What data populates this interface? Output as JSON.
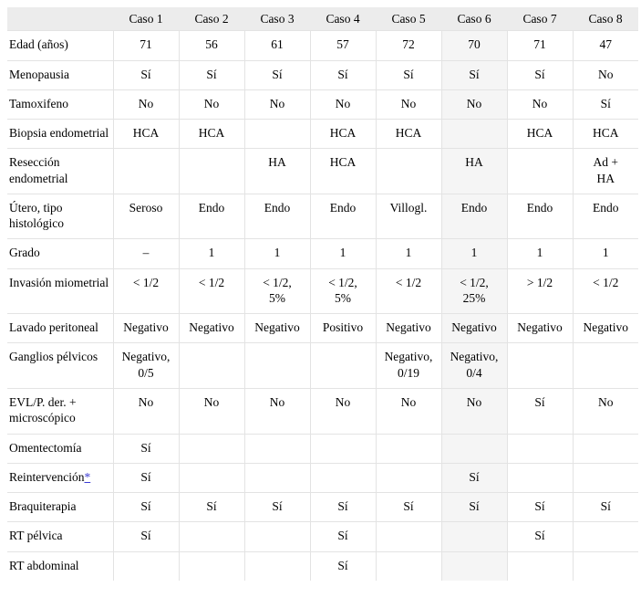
{
  "table": {
    "columns": [
      "",
      "Caso 1",
      "Caso 2",
      "Caso 3",
      "Caso 4",
      "Caso 5",
      "Caso 6",
      "Caso 7",
      "Caso 8"
    ],
    "highlight_column": "Caso 6",
    "header_bg": "#ececec",
    "highlight_col_bg": "#f5f5f5",
    "border_color": "#e3e3e3",
    "footnote_link_color": "#3b3bd4",
    "rows": [
      {
        "label": "Edad (años)",
        "values": [
          "71",
          "56",
          "61",
          "57",
          "72",
          "70",
          "71",
          "47"
        ]
      },
      {
        "label": "Menopausia",
        "values": [
          "Sí",
          "Sí",
          "Sí",
          "Sí",
          "Sí",
          "Sí",
          "Sí",
          "No"
        ]
      },
      {
        "label": "Tamoxifeno",
        "values": [
          "No",
          "No",
          "No",
          "No",
          "No",
          "No",
          "No",
          "Sí"
        ]
      },
      {
        "label": "Biopsia endometrial",
        "values": [
          "HCA",
          "HCA",
          "",
          "HCA",
          "HCA",
          "",
          "HCA",
          "HCA"
        ]
      },
      {
        "label": "Resección endometrial",
        "values": [
          "",
          "",
          "HA",
          "HCA",
          "",
          "HA",
          "",
          "Ad +\nHA"
        ]
      },
      {
        "label": "Útero, tipo histológico",
        "values": [
          "Seroso",
          "Endo",
          "Endo",
          "Endo",
          "Villogl.",
          "Endo",
          "Endo",
          "Endo"
        ]
      },
      {
        "label": "Grado",
        "values": [
          "–",
          "1",
          "1",
          "1",
          "1",
          "1",
          "1",
          "1"
        ]
      },
      {
        "label": "Invasión miometrial",
        "values": [
          "< 1/2",
          "< 1/2",
          "< 1/2,\n5%",
          "< 1/2,\n5%",
          "< 1/2",
          "< 1/2,\n25%",
          "> 1/2",
          "< 1/2"
        ]
      },
      {
        "label": "Lavado peritoneal",
        "values": [
          "Negativo",
          "Negativo",
          "Negativo",
          "Positivo",
          "Negativo",
          "Negativo",
          "Negativo",
          "Negativo"
        ]
      },
      {
        "label": "Ganglios pélvicos",
        "values": [
          "Negativo,\n0/5",
          "",
          "",
          "",
          "Negativo,\n0/19",
          "Negativo,\n0/4",
          "",
          ""
        ]
      },
      {
        "label": "EVL/P. der. + microscópico",
        "values": [
          "No",
          "No",
          "No",
          "No",
          "No",
          "No",
          "Sí",
          "No"
        ]
      },
      {
        "label": "Omentectomía",
        "values": [
          "Sí",
          "",
          "",
          "",
          "",
          "",
          "",
          ""
        ]
      },
      {
        "label": "Reintervención",
        "footnote": "*",
        "values": [
          "Sí",
          "",
          "",
          "",
          "",
          "Sí",
          "",
          ""
        ]
      },
      {
        "label": "Braquiterapia",
        "values": [
          "Sí",
          "Sí",
          "Sí",
          "Sí",
          "Sí",
          "Sí",
          "Sí",
          "Sí"
        ]
      },
      {
        "label": "RT pélvica",
        "values": [
          "Sí",
          "",
          "",
          "Sí",
          "",
          "",
          "Sí",
          ""
        ]
      },
      {
        "label": "RT abdominal",
        "values": [
          "",
          "",
          "",
          "Sí",
          "",
          "",
          "",
          ""
        ]
      }
    ]
  }
}
